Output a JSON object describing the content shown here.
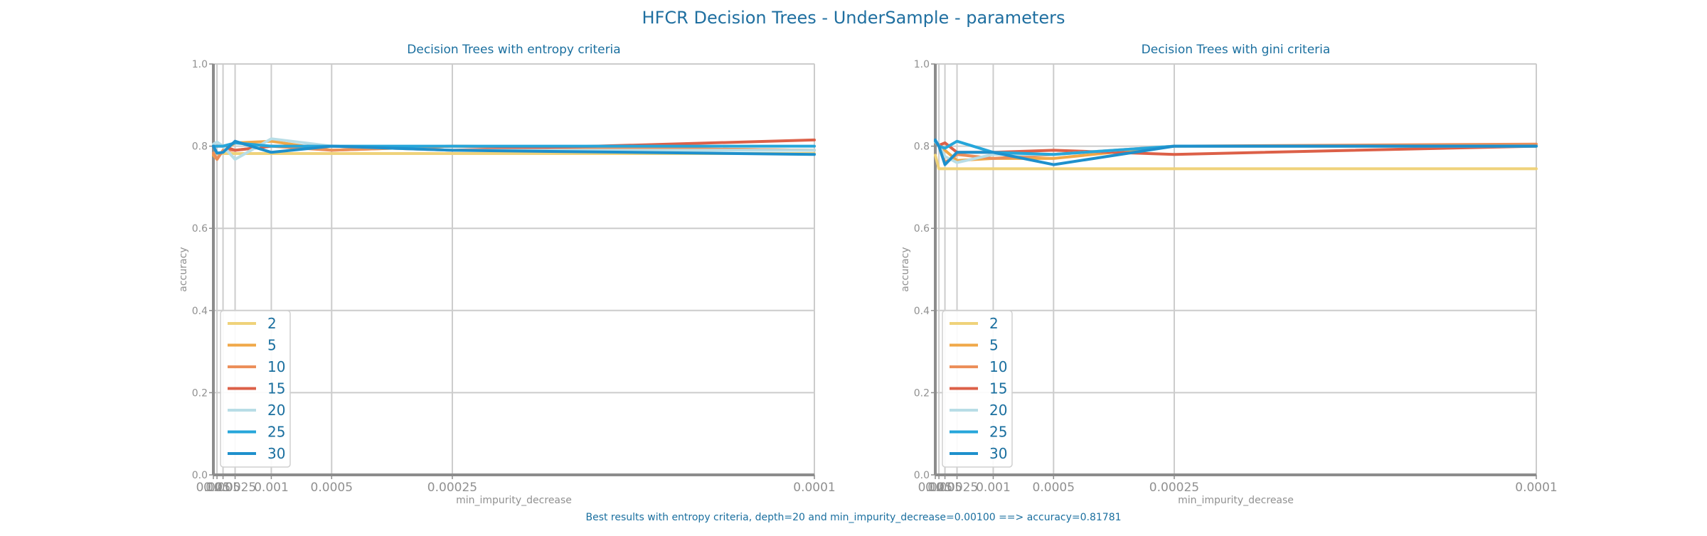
{
  "figure": {
    "title": "HFCR Decision Trees - UnderSample - parameters",
    "footer": "Best results with entropy criteria, depth=20 and min_impurity_decrease=0.00100 ==> accuracy=0.81781"
  },
  "colors": {
    "title": "#1f6fa0",
    "text": "#1a6f9f",
    "tick": "#909090",
    "grid": "#cccccc",
    "axis": "#8c8c8c"
  },
  "chart_data": [
    {
      "type": "line",
      "title": "Decision Trees with entropy criteria",
      "xlabel": "min_impurity_decrease",
      "ylabel": "accuracy",
      "x_scale": "reciprocal",
      "x": [
        0.025,
        0.01,
        0.005,
        0.0025,
        0.001,
        0.0005,
        0.00025,
        0.0001
      ],
      "xtick_labels": [
        "0.025",
        "0.01",
        "0.005",
        "0.0025",
        "0.001",
        "0.0005",
        "0.00025",
        "0.0001"
      ],
      "ylim": [
        0,
        1
      ],
      "yticks": [
        "0.0",
        "0.2",
        "0.4",
        "0.6",
        "0.8",
        "1.0"
      ],
      "grid": true,
      "legend_position": "lower-left",
      "series": [
        {
          "name": "2",
          "color": "#efd27a",
          "values": [
            0.783,
            0.782,
            0.782,
            0.782,
            0.782,
            0.782,
            0.782,
            0.782
          ]
        },
        {
          "name": "5",
          "color": "#f0a848",
          "values": [
            0.778,
            0.768,
            0.79,
            0.808,
            0.812,
            0.79,
            0.8,
            0.79
          ]
        },
        {
          "name": "10",
          "color": "#ec8f5a",
          "values": [
            0.783,
            0.768,
            0.79,
            0.79,
            0.8,
            0.79,
            0.8,
            0.79
          ]
        },
        {
          "name": "15",
          "color": "#dc6048",
          "values": [
            0.8,
            0.8,
            0.8,
            0.79,
            0.8,
            0.8,
            0.79,
            0.815
          ]
        },
        {
          "name": "20",
          "color": "#b8dde6",
          "values": [
            0.805,
            0.81,
            0.8,
            0.768,
            0.818,
            0.8,
            0.79,
            0.79
          ]
        },
        {
          "name": "25",
          "color": "#26a6da",
          "values": [
            0.8,
            0.8,
            0.8,
            0.808,
            0.8,
            0.8,
            0.8,
            0.8
          ]
        },
        {
          "name": "30",
          "color": "#1e90cc",
          "values": [
            0.8,
            0.783,
            0.785,
            0.812,
            0.785,
            0.8,
            0.79,
            0.78
          ]
        }
      ]
    },
    {
      "type": "line",
      "title": "Decision Trees with gini criteria",
      "xlabel": "min_impurity_decrease",
      "ylabel": "accuracy",
      "x_scale": "reciprocal",
      "x": [
        0.025,
        0.01,
        0.005,
        0.0025,
        0.001,
        0.0005,
        0.00025,
        0.0001
      ],
      "xtick_labels": [
        "0.025",
        "0.01",
        "0.005",
        "0.0025",
        "0.001",
        "0.0005",
        "0.00025",
        "0.0001"
      ],
      "ylim": [
        0,
        1
      ],
      "yticks": [
        "0.0",
        "0.2",
        "0.4",
        "0.6",
        "0.8",
        "1.0"
      ],
      "grid": true,
      "legend_position": "lower-left",
      "series": [
        {
          "name": "2",
          "color": "#efd27a",
          "values": [
            0.778,
            0.745,
            0.745,
            0.745,
            0.745,
            0.745,
            0.745,
            0.745
          ]
        },
        {
          "name": "5",
          "color": "#f0a848",
          "values": [
            0.81,
            0.8,
            0.79,
            0.765,
            0.77,
            0.77,
            0.8,
            0.8
          ]
        },
        {
          "name": "10",
          "color": "#ec8f5a",
          "values": [
            0.81,
            0.8,
            0.76,
            0.78,
            0.77,
            0.78,
            0.8,
            0.805
          ]
        },
        {
          "name": "15",
          "color": "#dc6048",
          "values": [
            0.812,
            0.802,
            0.808,
            0.785,
            0.785,
            0.79,
            0.78,
            0.8
          ]
        },
        {
          "name": "20",
          "color": "#b8dde6",
          "values": [
            0.81,
            0.802,
            0.775,
            0.76,
            0.78,
            0.78,
            0.8,
            0.8
          ]
        },
        {
          "name": "25",
          "color": "#26a6da",
          "values": [
            0.812,
            0.8,
            0.795,
            0.812,
            0.785,
            0.78,
            0.8,
            0.8
          ]
        },
        {
          "name": "30",
          "color": "#1e90cc",
          "values": [
            0.815,
            0.8,
            0.755,
            0.785,
            0.785,
            0.755,
            0.8,
            0.8
          ]
        }
      ]
    }
  ]
}
